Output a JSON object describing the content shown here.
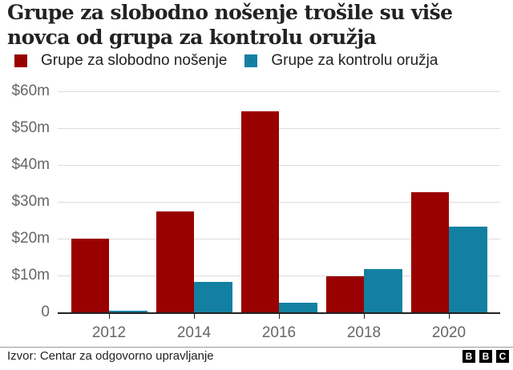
{
  "title": "Grupe za slobodno nošenje trošile su više novca od grupa za kontrolu oružja",
  "legend": [
    {
      "label": "Grupe za slobodno nošenje",
      "color": "#990000"
    },
    {
      "label": "Grupe za kontrolu oružja",
      "color": "#1380A1"
    }
  ],
  "source": "Izvor: Centar za odgovorno upravljanje",
  "logo": [
    "B",
    "B",
    "C"
  ],
  "chart_data": {
    "type": "bar",
    "title": "Grupe za slobodno nošenje trošile su više novca od grupa za kontrolu oružja",
    "xlabel": "",
    "ylabel": "",
    "categories": [
      "2012",
      "2014",
      "2016",
      "2018",
      "2020"
    ],
    "series": [
      {
        "name": "Grupe za slobodno nošenje",
        "color": "#990000",
        "values": [
          20.3,
          27.6,
          54.8,
          10.0,
          32.8
        ]
      },
      {
        "name": "Grupe za kontrolu oružja",
        "color": "#1380A1",
        "values": [
          0.6,
          8.5,
          2.9,
          12.0,
          23.4
        ]
      }
    ],
    "ylim": [
      0,
      60
    ],
    "yticks": [
      0,
      10,
      20,
      30,
      40,
      50,
      60
    ],
    "ytick_labels": [
      "0",
      "$10m",
      "$20m",
      "$30m",
      "$40m",
      "$50m",
      "$60m"
    ],
    "grid": true,
    "legend_position": "top"
  }
}
